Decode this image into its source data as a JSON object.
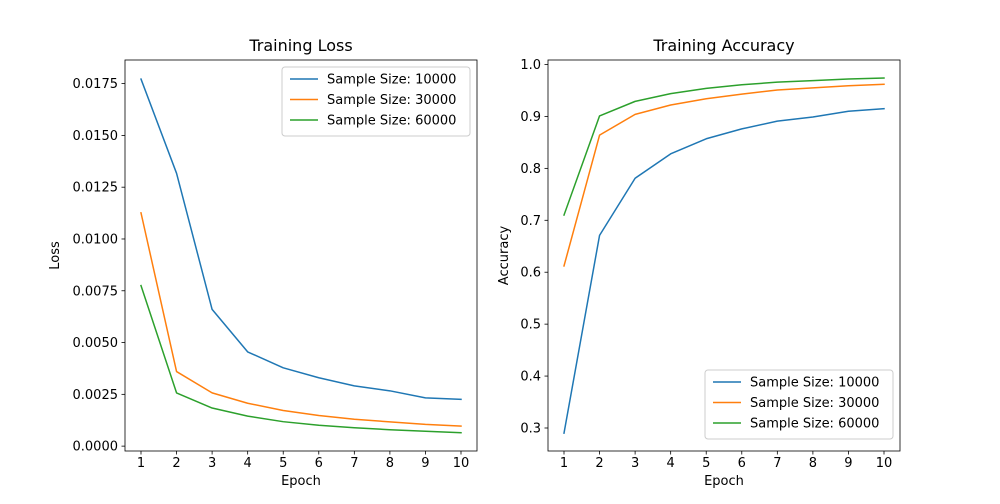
{
  "chart_data": [
    {
      "type": "line",
      "title": "Training Loss",
      "xlabel": "Epoch",
      "ylabel": "Loss",
      "x": [
        1,
        2,
        3,
        4,
        5,
        6,
        7,
        8,
        9,
        10
      ],
      "xlim": [
        0.55,
        10.45
      ],
      "ylim": [
        -0.000235,
        0.01864
      ],
      "xticks": [
        1,
        2,
        3,
        4,
        5,
        6,
        7,
        8,
        9,
        10
      ],
      "xtick_labels": [
        "1",
        "2",
        "3",
        "4",
        "5",
        "6",
        "7",
        "8",
        "9",
        "10"
      ],
      "yticks": [
        0,
        0.0025,
        0.005,
        0.0075,
        0.01,
        0.0125,
        0.015,
        0.0175
      ],
      "ytick_labels": [
        "0.0000",
        "0.0025",
        "0.0050",
        "0.0075",
        "0.0100",
        "0.0125",
        "0.0150",
        "0.0175"
      ],
      "legend_position": "top-right",
      "grid": false,
      "series": [
        {
          "name": "Sample Size: 10000",
          "color": "#1f77b4",
          "values": [
            0.01772,
            0.01317,
            0.0066,
            0.00455,
            0.00378,
            0.0033,
            0.00291,
            0.00267,
            0.00233,
            0.00226
          ]
        },
        {
          "name": "Sample Size: 30000",
          "color": "#ff7f0e",
          "values": [
            0.01126,
            0.0036,
            0.00257,
            0.00207,
            0.00172,
            0.00148,
            0.0013,
            0.00117,
            0.00105,
            0.00097
          ]
        },
        {
          "name": "Sample Size: 60000",
          "color": "#2ca02c",
          "values": [
            0.00775,
            0.00257,
            0.00184,
            0.00145,
            0.00118,
            0.00101,
            0.00089,
            0.00079,
            0.00072,
            0.00065
          ]
        }
      ]
    },
    {
      "type": "line",
      "title": "Training Accuracy",
      "xlabel": "Epoch",
      "ylabel": "Accuracy",
      "x": [
        1,
        2,
        3,
        4,
        5,
        6,
        7,
        8,
        9,
        10
      ],
      "xlim": [
        0.55,
        10.45
      ],
      "ylim": [
        0.2557,
        1.0087
      ],
      "xticks": [
        1,
        2,
        3,
        4,
        5,
        6,
        7,
        8,
        9,
        10
      ],
      "xtick_labels": [
        "1",
        "2",
        "3",
        "4",
        "5",
        "6",
        "7",
        "8",
        "9",
        "10"
      ],
      "yticks": [
        0.3,
        0.4,
        0.5,
        0.6,
        0.7,
        0.8,
        0.9,
        1.0
      ],
      "ytick_labels": [
        "0.3",
        "0.4",
        "0.5",
        "0.6",
        "0.7",
        "0.8",
        "0.9",
        "1.0"
      ],
      "legend_position": "bottom-right",
      "grid": false,
      "series": [
        {
          "name": "Sample Size: 10000",
          "color": "#1f77b4",
          "values": [
            0.29,
            0.671,
            0.781,
            0.828,
            0.857,
            0.876,
            0.891,
            0.899,
            0.91,
            0.915
          ]
        },
        {
          "name": "Sample Size: 30000",
          "color": "#ff7f0e",
          "values": [
            0.612,
            0.864,
            0.904,
            0.922,
            0.934,
            0.943,
            0.951,
            0.955,
            0.959,
            0.962
          ]
        },
        {
          "name": "Sample Size: 60000",
          "color": "#2ca02c",
          "values": [
            0.71,
            0.901,
            0.929,
            0.944,
            0.954,
            0.961,
            0.966,
            0.969,
            0.972,
            0.974
          ]
        }
      ]
    }
  ]
}
